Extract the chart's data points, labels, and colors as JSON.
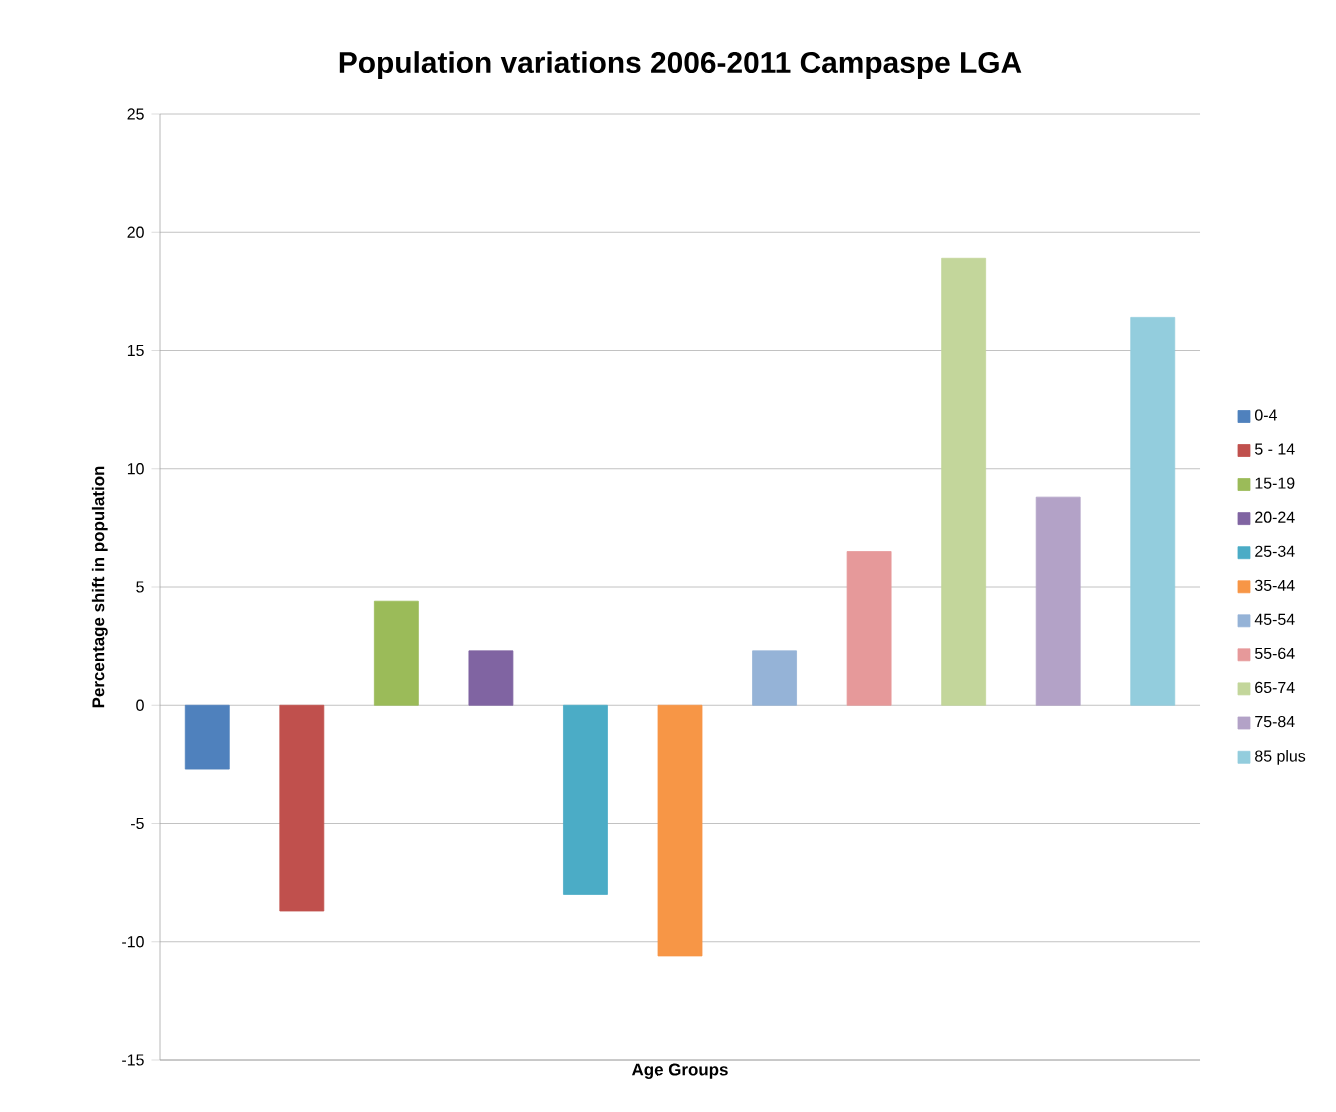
{
  "chart_data": {
    "type": "bar",
    "title": "Population variations 2006-2011 Campaspe LGA",
    "xlabel": "Age Groups",
    "ylabel": "Percentage shift in population",
    "categories": [
      null,
      null,
      null,
      null,
      null,
      null,
      null,
      null,
      null,
      null,
      null
    ],
    "series": [
      {
        "name": "0-4",
        "color": "#4f81bd",
        "values": [
          -2.7,
          null,
          null,
          null,
          null,
          null,
          null,
          null,
          null,
          null,
          null
        ]
      },
      {
        "name": "5 - 14",
        "color": "#c0504d",
        "values": [
          null,
          -8.7,
          null,
          null,
          null,
          null,
          null,
          null,
          null,
          null,
          null
        ]
      },
      {
        "name": "15-19",
        "color": "#9bbb59",
        "values": [
          null,
          null,
          4.4,
          null,
          null,
          null,
          null,
          null,
          null,
          null,
          null
        ]
      },
      {
        "name": "20-24",
        "color": "#8064a2",
        "values": [
          null,
          null,
          null,
          2.3,
          null,
          null,
          null,
          null,
          null,
          null,
          null
        ]
      },
      {
        "name": "25-34",
        "color": "#4bacc6",
        "values": [
          null,
          null,
          null,
          null,
          -8.0,
          null,
          null,
          null,
          null,
          null,
          null
        ]
      },
      {
        "name": "35-44",
        "color": "#f79646",
        "values": [
          null,
          null,
          null,
          null,
          null,
          -10.6,
          null,
          null,
          null,
          null,
          null
        ]
      },
      {
        "name": "45-54",
        "color": "#95b3d7",
        "values": [
          null,
          null,
          null,
          null,
          null,
          null,
          2.3,
          null,
          null,
          null,
          null
        ]
      },
      {
        "name": "55-64",
        "color": "#e6999a",
        "values": [
          null,
          null,
          null,
          null,
          null,
          null,
          null,
          6.5,
          null,
          null,
          null
        ]
      },
      {
        "name": "65-74",
        "color": "#c3d69b",
        "values": [
          null,
          null,
          null,
          null,
          null,
          null,
          null,
          null,
          18.9,
          null,
          null
        ]
      },
      {
        "name": "75-84",
        "color": "#b3a2c7",
        "values": [
          null,
          null,
          null,
          null,
          null,
          null,
          null,
          null,
          null,
          8.8,
          null
        ]
      },
      {
        "name": "85 plus",
        "color": "#93cddd",
        "values": [
          null,
          null,
          null,
          null,
          null,
          null,
          null,
          null,
          null,
          null,
          16.4
        ]
      }
    ],
    "ylim": [
      -15,
      25
    ],
    "yticks": [
      -15,
      -10,
      -5,
      0,
      5,
      10,
      15,
      20,
      25
    ],
    "grid": "y",
    "legend": "right"
  }
}
